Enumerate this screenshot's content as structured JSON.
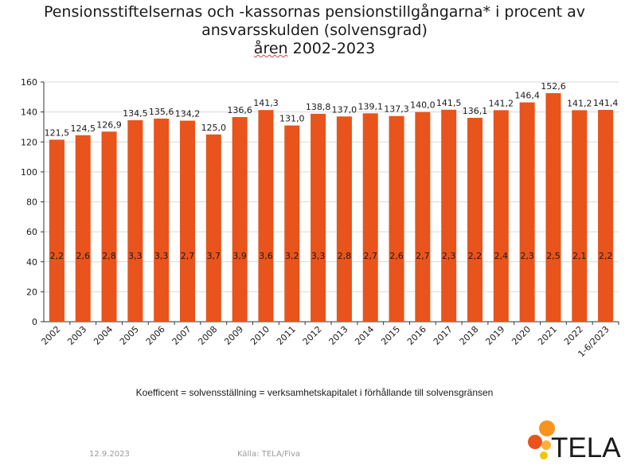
{
  "title": {
    "line1": "Pensionsstiftelsernas och -kassornas pensionstillgångarna* i procent av",
    "line2": "ansvarsskulden (solvensgrad)",
    "line3_word": "åren",
    "line3_rest": " 2002-2023"
  },
  "footnote": "Koefficent = solvensställning = verksamhetskapitalet i förhållande till solvensgränsen",
  "footer": {
    "date": "12.9.2023",
    "source": "Källa: TELA/Fiva"
  },
  "logo": {
    "text": "TELA",
    "colors": [
      "#f7941d",
      "#e8541c",
      "#fbb03b",
      "#f5c400"
    ]
  },
  "colors": {
    "bar": "#e8541c",
    "grid": "#d9d9d9",
    "axis": "#333333"
  },
  "chart_data": {
    "type": "bar",
    "title": "Pensionsstiftelsernas och -kassornas pensionstillgångarna* i procent av ansvarsskulden (solvensgrad) åren 2002-2023",
    "categories": [
      "2002",
      "2003",
      "2004",
      "2005",
      "2006",
      "2007",
      "2008",
      "2009",
      "2010",
      "2011",
      "2012",
      "2013",
      "2014",
      "2015",
      "2016",
      "2017",
      "2018",
      "2019",
      "2020",
      "2021",
      "2022",
      "1-6/2023"
    ],
    "values": [
      121.5,
      124.5,
      126.9,
      134.5,
      135.6,
      134.2,
      125.0,
      136.6,
      141.3,
      131.0,
      138.8,
      137.0,
      139.1,
      137.3,
      140.0,
      141.5,
      136.1,
      141.2,
      146.4,
      152.6,
      141.2,
      141.4
    ],
    "value_labels": [
      "121,5",
      "124,5",
      "126,9",
      "134,5",
      "135,6",
      "134,2",
      "125,0",
      "136,6",
      "141,3",
      "131,0",
      "138,8",
      "137,0",
      "139,1",
      "137,3",
      "140,0",
      "141,5",
      "136,1",
      "141,2",
      "146,4",
      "152,6",
      "141,2",
      "141,4"
    ],
    "coefficients": [
      "2,2",
      "2,6",
      "2,8",
      "3,3",
      "3,3",
      "2,7",
      "3,7",
      "3,9",
      "3,6",
      "3,2",
      "3,3",
      "2,8",
      "2,7",
      "2,6",
      "2,7",
      "2,3",
      "2,2",
      "2,4",
      "2,3",
      "2,5",
      "2,1",
      "2,2"
    ],
    "ylim": [
      0,
      160
    ],
    "yticks": [
      0,
      20,
      40,
      60,
      80,
      100,
      120,
      140,
      160
    ],
    "grid": true,
    "xlabel": "",
    "ylabel": ""
  }
}
